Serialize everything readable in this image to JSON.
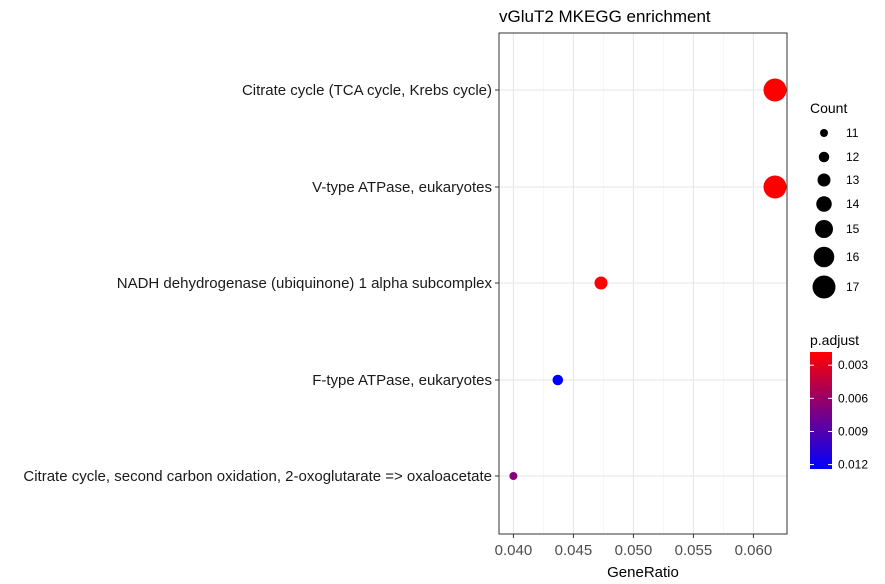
{
  "chart_data": {
    "type": "scatter",
    "title": "vGluT2 MKEGG enrichment",
    "xlabel": "GeneRatio",
    "ylabel": "",
    "xlim": [
      0.0388,
      0.0628
    ],
    "x_ticks": [
      0.04,
      0.045,
      0.05,
      0.055,
      0.06
    ],
    "x_tick_labels": [
      "0.040",
      "0.045",
      "0.050",
      "0.055",
      "0.060"
    ],
    "grid": true,
    "categories": [
      "Citrate cycle (TCA cycle, Krebs cycle)",
      "V-type ATPase, eukaryotes",
      "NADH dehydrogenase (ubiquinone) 1 alpha subcomplex",
      "F-type ATPase, eukaryotes",
      "Citrate cycle, second carbon oxidation, 2-oxoglutarate => oxaloacetate"
    ],
    "points": [
      {
        "category": "Citrate cycle (TCA cycle, Krebs cycle)",
        "gene_ratio": 0.0618,
        "count": 17,
        "p_adjust": 0.0018
      },
      {
        "category": "V-type ATPase, eukaryotes",
        "gene_ratio": 0.0618,
        "count": 17,
        "p_adjust": 0.0018
      },
      {
        "category": "NADH dehydrogenase (ubiquinone) 1 alpha subcomplex",
        "gene_ratio": 0.0473,
        "count": 13,
        "p_adjust": 0.0018
      },
      {
        "category": "F-type ATPase, eukaryotes",
        "gene_ratio": 0.0437,
        "count": 12,
        "p_adjust": 0.0124
      },
      {
        "category": "Citrate cycle, second carbon oxidation, 2-oxoglutarate => oxaloacetate",
        "gene_ratio": 0.04,
        "count": 11,
        "p_adjust": 0.0068
      }
    ],
    "size_legend": {
      "title": "Count",
      "values": [
        11,
        12,
        13,
        14,
        15,
        16,
        17
      ],
      "labels": [
        "11",
        "12",
        "13",
        "14",
        "15",
        "16",
        "17"
      ]
    },
    "color_legend": {
      "title": "p.adjust",
      "range": [
        0.0018,
        0.0124
      ],
      "ticks": [
        0.003,
        0.006,
        0.009,
        0.012
      ],
      "tick_labels": [
        "0.003",
        "0.006",
        "0.009",
        "0.012"
      ],
      "low_color": "#FF0000",
      "high_color": "#0000FF",
      "orientation": "reversed"
    },
    "legend_position": "right"
  }
}
